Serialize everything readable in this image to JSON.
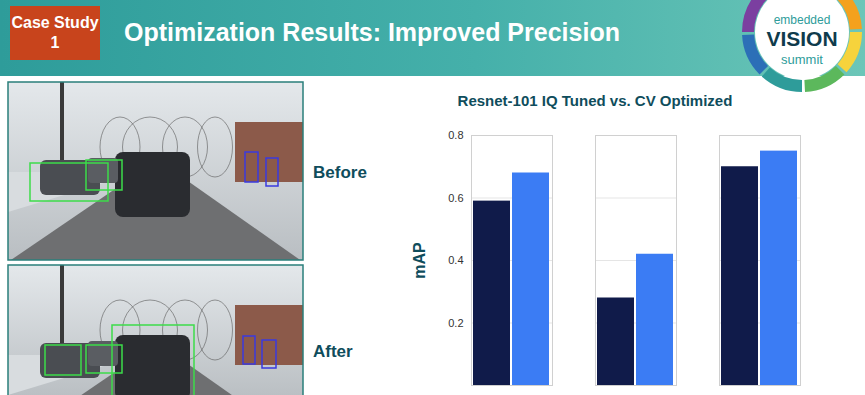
{
  "slide": {
    "badge": "Case Study 1",
    "title": "Optimization Results: Improved Precision",
    "logo": [
      "embedded",
      "VISION",
      "summit"
    ],
    "images": [
      {
        "label": "Before"
      },
      {
        "label": "After"
      }
    ]
  },
  "chart_data": {
    "type": "bar",
    "title": "Resnet-101 IQ Tuned vs. CV Optimized",
    "y_label": "mAP",
    "categories": [
      null,
      null,
      null
    ],
    "series": [
      {
        "color": "#101b4a",
        "values": [
          0.59,
          0.28,
          0.7
        ]
      },
      {
        "color": "#3b7cf4",
        "values": [
          0.68,
          0.42,
          0.75
        ]
      }
    ],
    "ylim": [
      0,
      0.8
    ],
    "yticks": [
      0.2,
      0.4,
      0.6,
      0.8
    ],
    "grid": true,
    "tick_labels": "y"
  }
}
